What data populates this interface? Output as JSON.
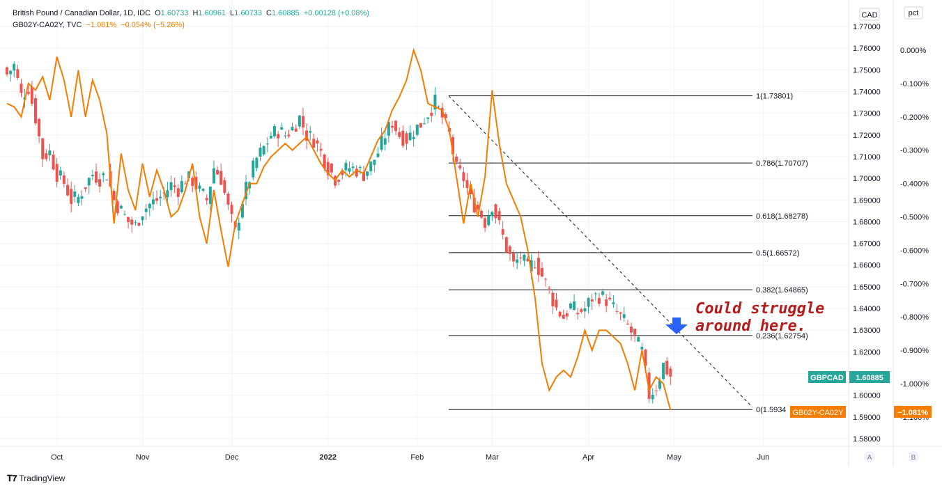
{
  "legend": {
    "symbol1_name": "British Pound / Canadian Dollar, 1D, IDC",
    "o_label": "O",
    "o_value": "1.60733",
    "h_label": "H",
    "h_value": "1.60961",
    "l_label": "L",
    "l_value": "1.60733",
    "c_label": "C",
    "c_value": "1.60885",
    "change": "+0.00128 (+0.08%)",
    "symbol2_name": "GB02Y-CA02Y, TVC",
    "s2_value": "−1.081%",
    "s2_change": "−0.054% (−5.26%)"
  },
  "scale_labels": {
    "right1_unit": "CAD",
    "right2_unit": "pct"
  },
  "annotation": {
    "line1": "Could struggle",
    "line2": "around here."
  },
  "tags": {
    "gbpcad_name": "GBPCAD",
    "gbpcad_value": "1.60885",
    "spread_name": "GB02Y-CA02Y",
    "spread_value": "−1.081%"
  },
  "buttons": {
    "a": "A",
    "b": "B"
  },
  "branding": "TradingView",
  "colors": {
    "up": "#26a69a",
    "down": "#ef5350",
    "spread": "#f57c00",
    "annotation": "#b71c1c",
    "arrow": "#2962ff"
  },
  "chart_data": {
    "type": "candlestick",
    "title": "British Pound / Canadian Dollar, 1D, IDC",
    "x_tick_labels": [
      "Oct",
      "Nov",
      "Dec",
      "2022",
      "Feb",
      "Mar",
      "Apr",
      "May",
      "Jun"
    ],
    "y_axis_left_ticks": [
      "1.77000",
      "1.76000",
      "1.75000",
      "1.74000",
      "1.73000",
      "1.72000",
      "1.71000",
      "1.70000",
      "1.69000",
      "1.68000",
      "1.67000",
      "1.66000",
      "1.65000",
      "1.64000",
      "1.63000",
      "1.62000",
      "1.61000",
      "1.60000",
      "1.59000",
      "1.58000"
    ],
    "y_axis_right_ticks": [
      "0.000%",
      "-0.100%",
      "-0.200%",
      "-0.300%",
      "-0.400%",
      "-0.500%",
      "-0.600%",
      "-0.700%",
      "-0.800%",
      "-0.900%",
      "-1.000%",
      "-1.100%"
    ],
    "ylim_price": [
      1.575,
      1.78
    ],
    "ylim_spread": [
      -1.2,
      0.1
    ],
    "fib_levels": [
      {
        "label": "1(1.73801)",
        "value": 1.73801
      },
      {
        "label": "0.786(1.70707)",
        "value": 1.70707
      },
      {
        "label": "0.618(1.68278)",
        "value": 1.68278
      },
      {
        "label": "0.5(1.66572)",
        "value": 1.66572
      },
      {
        "label": "0.382(1.64865)",
        "value": 1.64865
      },
      {
        "label": "0.236(1.62754)",
        "value": 1.62754
      },
      {
        "label": "0(1.5934",
        "value": 1.5934
      }
    ],
    "trendline": {
      "start": [
        38,
        1.738
      ],
      "end": [
        112,
        1.5945
      ]
    },
    "price_anchors": [
      [
        0,
        1.748
      ],
      [
        2,
        1.752
      ],
      [
        4,
        1.738
      ],
      [
        6,
        1.742
      ],
      [
        8,
        1.728
      ],
      [
        10,
        1.71
      ],
      [
        12,
        1.712
      ],
      [
        14,
        1.702
      ],
      [
        16,
        1.698
      ],
      [
        18,
        1.69
      ],
      [
        20,
        1.691
      ],
      [
        22,
        1.697
      ],
      [
        24,
        1.702
      ],
      [
        26,
        1.7
      ],
      [
        28,
        1.702
      ],
      [
        30,
        1.69
      ],
      [
        32,
        1.685
      ],
      [
        34,
        1.68
      ],
      [
        36,
        1.678
      ],
      [
        38,
        1.685
      ],
      [
        40,
        1.688
      ],
      [
        42,
        1.69
      ],
      [
        44,
        1.693
      ],
      [
        46,
        1.697
      ],
      [
        48,
        1.695
      ],
      [
        50,
        1.7
      ],
      [
        52,
        1.699
      ],
      [
        54,
        1.694
      ],
      [
        56,
        1.69
      ],
      [
        58,
        1.705
      ],
      [
        60,
        1.7
      ],
      [
        62,
        1.686
      ],
      [
        64,
        1.675
      ],
      [
        66,
        1.69
      ],
      [
        68,
        1.7
      ],
      [
        70,
        1.709
      ],
      [
        72,
        1.714
      ],
      [
        74,
        1.72
      ],
      [
        76,
        1.722
      ],
      [
        78,
        1.72
      ],
      [
        80,
        1.723
      ],
      [
        82,
        1.728
      ],
      [
        84,
        1.72
      ],
      [
        86,
        1.718
      ],
      [
        88,
        1.712
      ],
      [
        90,
        1.705
      ],
      [
        92,
        1.7
      ],
      [
        94,
        1.703
      ],
      [
        96,
        1.705
      ],
      [
        98,
        1.704
      ],
      [
        100,
        1.702
      ],
      [
        102,
        1.706
      ],
      [
        104,
        1.712
      ],
      [
        106,
        1.72
      ],
      [
        108,
        1.726
      ],
      [
        110,
        1.72
      ],
      [
        112,
        1.718
      ],
      [
        114,
        1.722
      ],
      [
        116,
        1.725
      ],
      [
        118,
        1.73
      ],
      [
        120,
        1.735
      ],
      [
        122,
        1.728
      ],
      [
        124,
        1.72
      ],
      [
        126,
        1.704
      ],
      [
        128,
        1.7
      ],
      [
        130,
        1.69
      ],
      [
        132,
        1.686
      ],
      [
        134,
        1.68
      ],
      [
        136,
        1.688
      ],
      [
        138,
        1.678
      ],
      [
        140,
        1.668
      ],
      [
        142,
        1.66
      ],
      [
        144,
        1.664
      ],
      [
        146,
        1.658
      ],
      [
        148,
        1.662
      ],
      [
        150,
        1.655
      ],
      [
        152,
        1.648
      ],
      [
        154,
        1.64
      ],
      [
        156,
        1.636
      ],
      [
        158,
        1.641
      ],
      [
        160,
        1.638
      ],
      [
        162,
        1.64
      ],
      [
        164,
        1.645
      ],
      [
        166,
        1.646
      ],
      [
        168,
        1.644
      ],
      [
        170,
        1.64
      ],
      [
        172,
        1.636
      ],
      [
        174,
        1.632
      ],
      [
        176,
        1.626
      ],
      [
        178,
        1.62
      ],
      [
        180,
        1.6
      ],
      [
        182,
        1.604
      ],
      [
        184,
        1.614
      ],
      [
        186,
        1.6088
      ]
    ],
    "spread_anchors": [
      [
        0,
        -0.16
      ],
      [
        2,
        -0.17
      ],
      [
        4,
        -0.2
      ],
      [
        6,
        -0.1
      ],
      [
        8,
        -0.12
      ],
      [
        10,
        -0.08
      ],
      [
        12,
        -0.15
      ],
      [
        14,
        -0.02
      ],
      [
        16,
        -0.09
      ],
      [
        18,
        -0.2
      ],
      [
        20,
        -0.06
      ],
      [
        22,
        -0.2
      ],
      [
        24,
        -0.09
      ],
      [
        26,
        -0.15
      ],
      [
        28,
        -0.25
      ],
      [
        30,
        -0.52
      ],
      [
        32,
        -0.31
      ],
      [
        34,
        -0.42
      ],
      [
        36,
        -0.48
      ],
      [
        38,
        -0.34
      ],
      [
        40,
        -0.44
      ],
      [
        42,
        -0.36
      ],
      [
        44,
        -0.42
      ],
      [
        46,
        -0.5
      ],
      [
        48,
        -0.48
      ],
      [
        50,
        -0.42
      ],
      [
        52,
        -0.34
      ],
      [
        54,
        -0.5
      ],
      [
        56,
        -0.58
      ],
      [
        58,
        -0.42
      ],
      [
        60,
        -0.54
      ],
      [
        62,
        -0.65
      ],
      [
        64,
        -0.52
      ],
      [
        66,
        -0.46
      ],
      [
        68,
        -0.4
      ],
      [
        70,
        -0.4
      ],
      [
        72,
        -0.35
      ],
      [
        74,
        -0.32
      ],
      [
        76,
        -0.3
      ],
      [
        78,
        -0.28
      ],
      [
        80,
        -0.3
      ],
      [
        82,
        -0.28
      ],
      [
        84,
        -0.26
      ],
      [
        86,
        -0.3
      ],
      [
        88,
        -0.34
      ],
      [
        90,
        -0.37
      ],
      [
        92,
        -0.39
      ],
      [
        94,
        -0.36
      ],
      [
        96,
        -0.38
      ],
      [
        98,
        -0.36
      ],
      [
        100,
        -0.37
      ],
      [
        102,
        -0.32
      ],
      [
        104,
        -0.27
      ],
      [
        106,
        -0.24
      ],
      [
        108,
        -0.18
      ],
      [
        110,
        -0.14
      ],
      [
        112,
        -0.09
      ],
      [
        114,
        0.0
      ],
      [
        116,
        -0.06
      ],
      [
        118,
        -0.16
      ],
      [
        120,
        -0.17
      ],
      [
        122,
        -0.18
      ],
      [
        124,
        -0.24
      ],
      [
        126,
        -0.38
      ],
      [
        128,
        -0.52
      ],
      [
        130,
        -0.4
      ],
      [
        132,
        -0.5
      ],
      [
        134,
        -0.38
      ],
      [
        136,
        -0.12
      ],
      [
        138,
        -0.28
      ],
      [
        140,
        -0.4
      ],
      [
        142,
        -0.45
      ],
      [
        144,
        -0.5
      ],
      [
        146,
        -0.6
      ],
      [
        148,
        -0.74
      ],
      [
        150,
        -0.94
      ],
      [
        152,
        -1.02
      ],
      [
        154,
        -0.98
      ],
      [
        156,
        -0.96
      ],
      [
        158,
        -0.98
      ],
      [
        160,
        -0.92
      ],
      [
        162,
        -0.84
      ],
      [
        164,
        -0.9
      ],
      [
        166,
        -0.84
      ],
      [
        168,
        -0.84
      ],
      [
        170,
        -0.86
      ],
      [
        172,
        -0.88
      ],
      [
        174,
        -0.94
      ],
      [
        176,
        -1.02
      ],
      [
        178,
        -0.9
      ],
      [
        180,
        -1.02
      ],
      [
        182,
        -0.98
      ],
      [
        184,
        -1.0
      ],
      [
        186,
        -1.08
      ]
    ]
  }
}
